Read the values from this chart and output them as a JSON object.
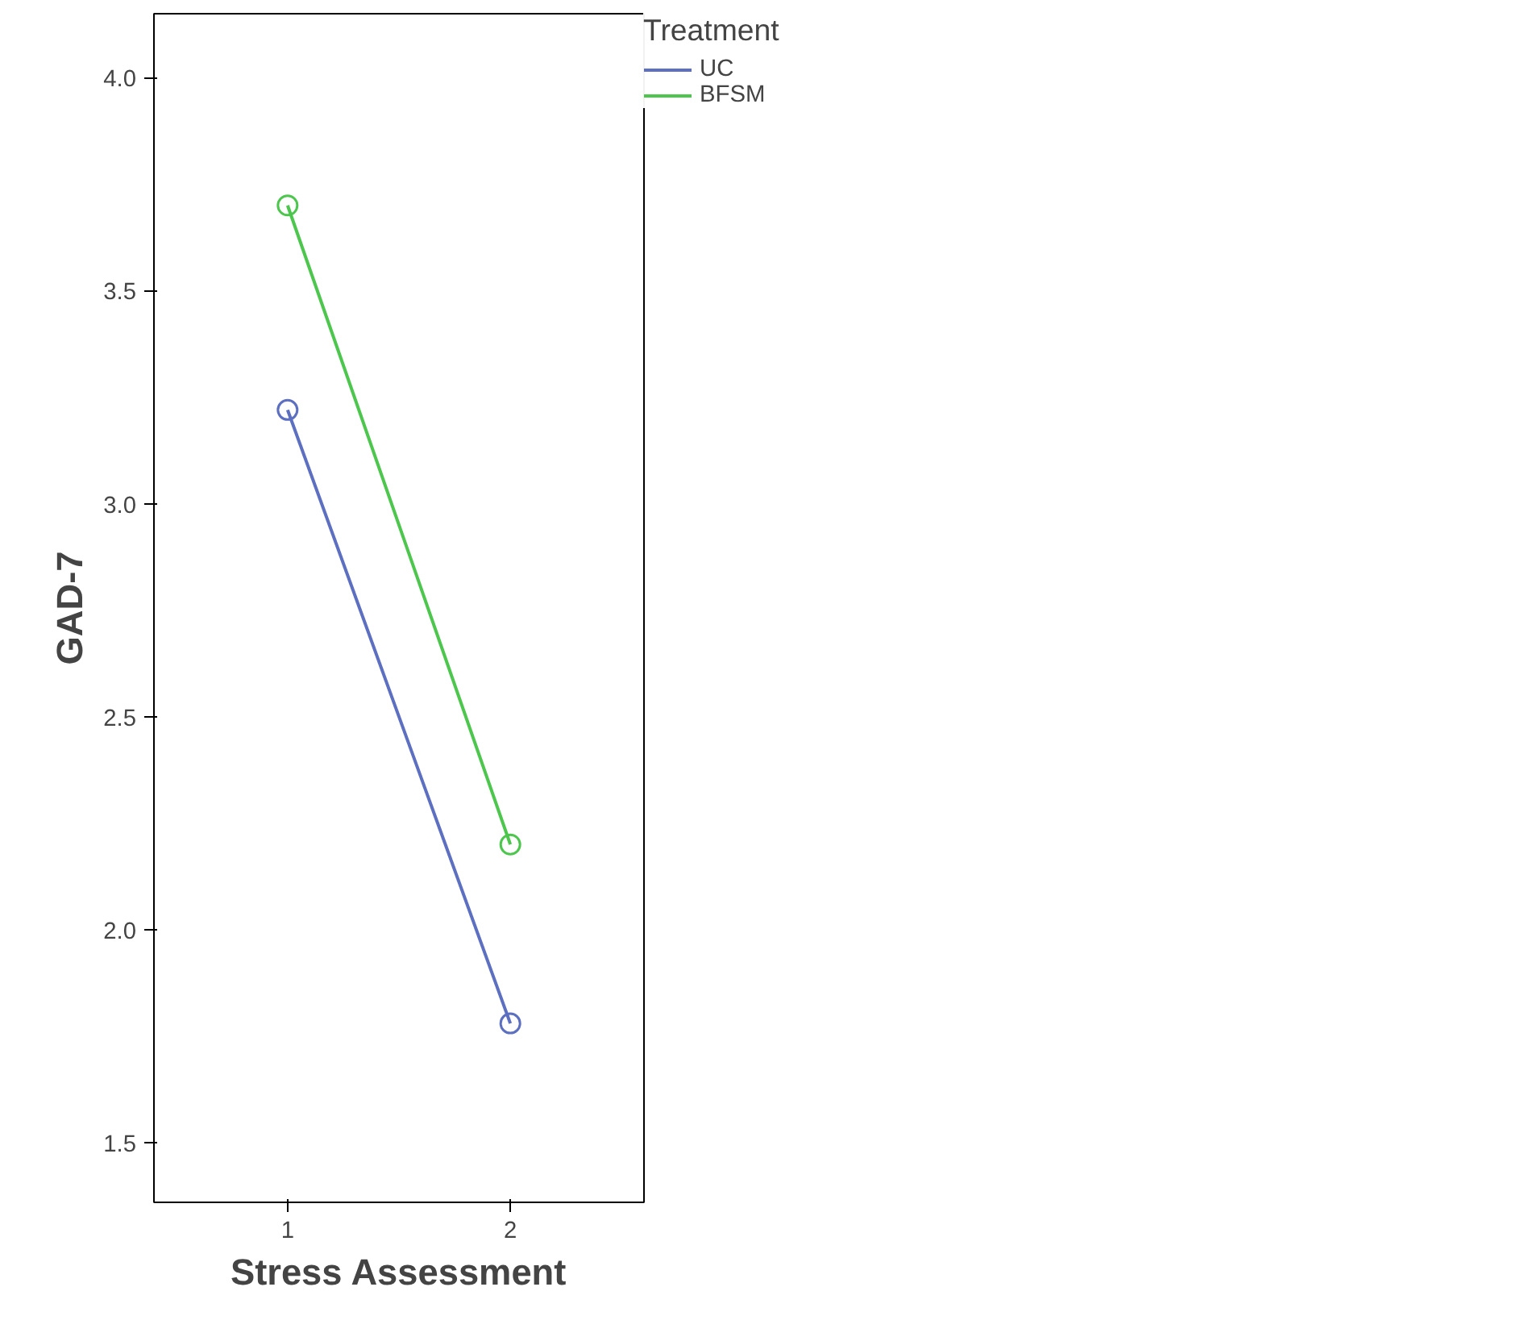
{
  "chart_data": {
    "type": "line",
    "xlabel": "Stress Assessment",
    "ylabel": "GAD-7",
    "legend_title": "Treatment",
    "x": [
      1,
      2
    ],
    "series": [
      {
        "name": "UC",
        "color": "#5c6fc0",
        "values": [
          3.22,
          1.78
        ]
      },
      {
        "name": "BFSM",
        "color": "#4cc64c",
        "values": [
          3.7,
          2.2
        ]
      }
    ],
    "xlim": [
      0.4,
      2.6
    ],
    "xticks": [
      1,
      2
    ],
    "ylim": [
      1.36,
      4.15
    ],
    "yticks": [
      {
        "value": 1.5,
        "label": "1.5"
      },
      {
        "value": 2.0,
        "label": "2.0"
      },
      {
        "value": 2.5,
        "label": "2.5"
      },
      {
        "value": 3.0,
        "label": "3.0"
      },
      {
        "value": 3.5,
        "label": "3.5"
      },
      {
        "value": 4.0,
        "label": "4.0"
      }
    ],
    "grid": false,
    "legend": "top right",
    "marker": "circle",
    "line_style": "solid"
  }
}
